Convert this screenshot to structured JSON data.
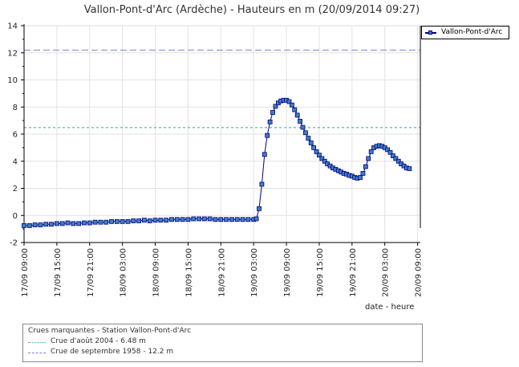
{
  "chart_data": {
    "type": "line",
    "title": "Vallon-Pont-d'Arc (Ardèche) - Hauteurs en m (20/09/2014 09:27)",
    "xlabel": "date - heure",
    "ylabel": "",
    "ylim": [
      -2,
      14
    ],
    "yticks": [
      -2,
      0,
      2,
      4,
      6,
      8,
      10,
      12,
      14
    ],
    "grid": true,
    "legend_position": "top-right",
    "x_tick_labels": [
      "17/09 09:00",
      "17/09 15:00",
      "17/09 21:00",
      "18/09 03:00",
      "18/09 09:00",
      "18/09 15:00",
      "18/09 21:00",
      "19/09 03:00",
      "19/09 09:00",
      "19/09 15:00",
      "19/09 21:00",
      "20/09 03:00",
      "20/09 09:00"
    ],
    "x_tick_hours": [
      0,
      6,
      12,
      18,
      24,
      30,
      36,
      42,
      48,
      54,
      60,
      66,
      72
    ],
    "series": [
      {
        "name": "Vallon-Pont-d'Arc",
        "color": "#000080",
        "marker_color": "#3f7fc0",
        "points": [
          [
            0,
            -0.75
          ],
          [
            1,
            -0.75
          ],
          [
            2,
            -0.7
          ],
          [
            3,
            -0.7
          ],
          [
            4,
            -0.65
          ],
          [
            5,
            -0.65
          ],
          [
            6,
            -0.6
          ],
          [
            7,
            -0.6
          ],
          [
            8,
            -0.55
          ],
          [
            9,
            -0.6
          ],
          [
            10,
            -0.6
          ],
          [
            11,
            -0.55
          ],
          [
            12,
            -0.55
          ],
          [
            13,
            -0.5
          ],
          [
            14,
            -0.5
          ],
          [
            15,
            -0.5
          ],
          [
            16,
            -0.45
          ],
          [
            17,
            -0.45
          ],
          [
            18,
            -0.45
          ],
          [
            19,
            -0.45
          ],
          [
            20,
            -0.4
          ],
          [
            21,
            -0.4
          ],
          [
            22,
            -0.35
          ],
          [
            23,
            -0.4
          ],
          [
            24,
            -0.35
          ],
          [
            25,
            -0.35
          ],
          [
            26,
            -0.35
          ],
          [
            27,
            -0.3
          ],
          [
            28,
            -0.3
          ],
          [
            29,
            -0.3
          ],
          [
            30,
            -0.3
          ],
          [
            31,
            -0.25
          ],
          [
            32,
            -0.25
          ],
          [
            33,
            -0.25
          ],
          [
            34,
            -0.25
          ],
          [
            35,
            -0.3
          ],
          [
            36,
            -0.3
          ],
          [
            37,
            -0.3
          ],
          [
            38,
            -0.3
          ],
          [
            39,
            -0.3
          ],
          [
            40,
            -0.3
          ],
          [
            41,
            -0.3
          ],
          [
            42,
            -0.3
          ],
          [
            42.5,
            -0.25
          ],
          [
            43,
            0.5
          ],
          [
            43.5,
            2.3
          ],
          [
            44,
            4.5
          ],
          [
            44.5,
            5.9
          ],
          [
            45,
            6.9
          ],
          [
            45.5,
            7.6
          ],
          [
            46,
            8.05
          ],
          [
            46.5,
            8.3
          ],
          [
            47,
            8.45
          ],
          [
            47.5,
            8.5
          ],
          [
            48,
            8.5
          ],
          [
            48.5,
            8.4
          ],
          [
            49,
            8.15
          ],
          [
            49.5,
            7.8
          ],
          [
            50,
            7.4
          ],
          [
            50.5,
            6.95
          ],
          [
            51,
            6.5
          ],
          [
            51.5,
            6.1
          ],
          [
            52,
            5.7
          ],
          [
            52.5,
            5.35
          ],
          [
            53,
            5.0
          ],
          [
            53.5,
            4.7
          ],
          [
            54,
            4.45
          ],
          [
            54.5,
            4.2
          ],
          [
            55,
            4.0
          ],
          [
            55.5,
            3.8
          ],
          [
            56,
            3.65
          ],
          [
            56.5,
            3.5
          ],
          [
            57,
            3.4
          ],
          [
            57.5,
            3.3
          ],
          [
            58,
            3.2
          ],
          [
            58.5,
            3.1
          ],
          [
            59,
            3.05
          ],
          [
            59.5,
            2.95
          ],
          [
            60,
            2.9
          ],
          [
            60.5,
            2.8
          ],
          [
            61,
            2.75
          ],
          [
            61.5,
            2.8
          ],
          [
            62,
            3.1
          ],
          [
            62.5,
            3.6
          ],
          [
            63,
            4.2
          ],
          [
            63.5,
            4.7
          ],
          [
            64,
            5.0
          ],
          [
            64.5,
            5.1
          ],
          [
            65,
            5.15
          ],
          [
            65.5,
            5.1
          ],
          [
            66,
            5.0
          ],
          [
            66.5,
            4.85
          ],
          [
            67,
            4.65
          ],
          [
            67.5,
            4.4
          ],
          [
            68,
            4.2
          ],
          [
            68.5,
            4.0
          ],
          [
            69,
            3.8
          ],
          [
            69.5,
            3.65
          ],
          [
            70,
            3.5
          ],
          [
            70.5,
            3.45
          ]
        ]
      }
    ],
    "reference_lines": [
      {
        "value": 6.48,
        "color": "#3a9ab0",
        "style": "dotted"
      },
      {
        "value": 12.2,
        "color": "#8080d0",
        "style": "dashed"
      }
    ],
    "reference_box": {
      "title": "Crues marquantes - Station Vallon-Pont-d'Arc",
      "items": [
        "Crue d'août 2004 - 6.48 m",
        "Crue de septembre 1958 - 12.2 m"
      ]
    }
  }
}
